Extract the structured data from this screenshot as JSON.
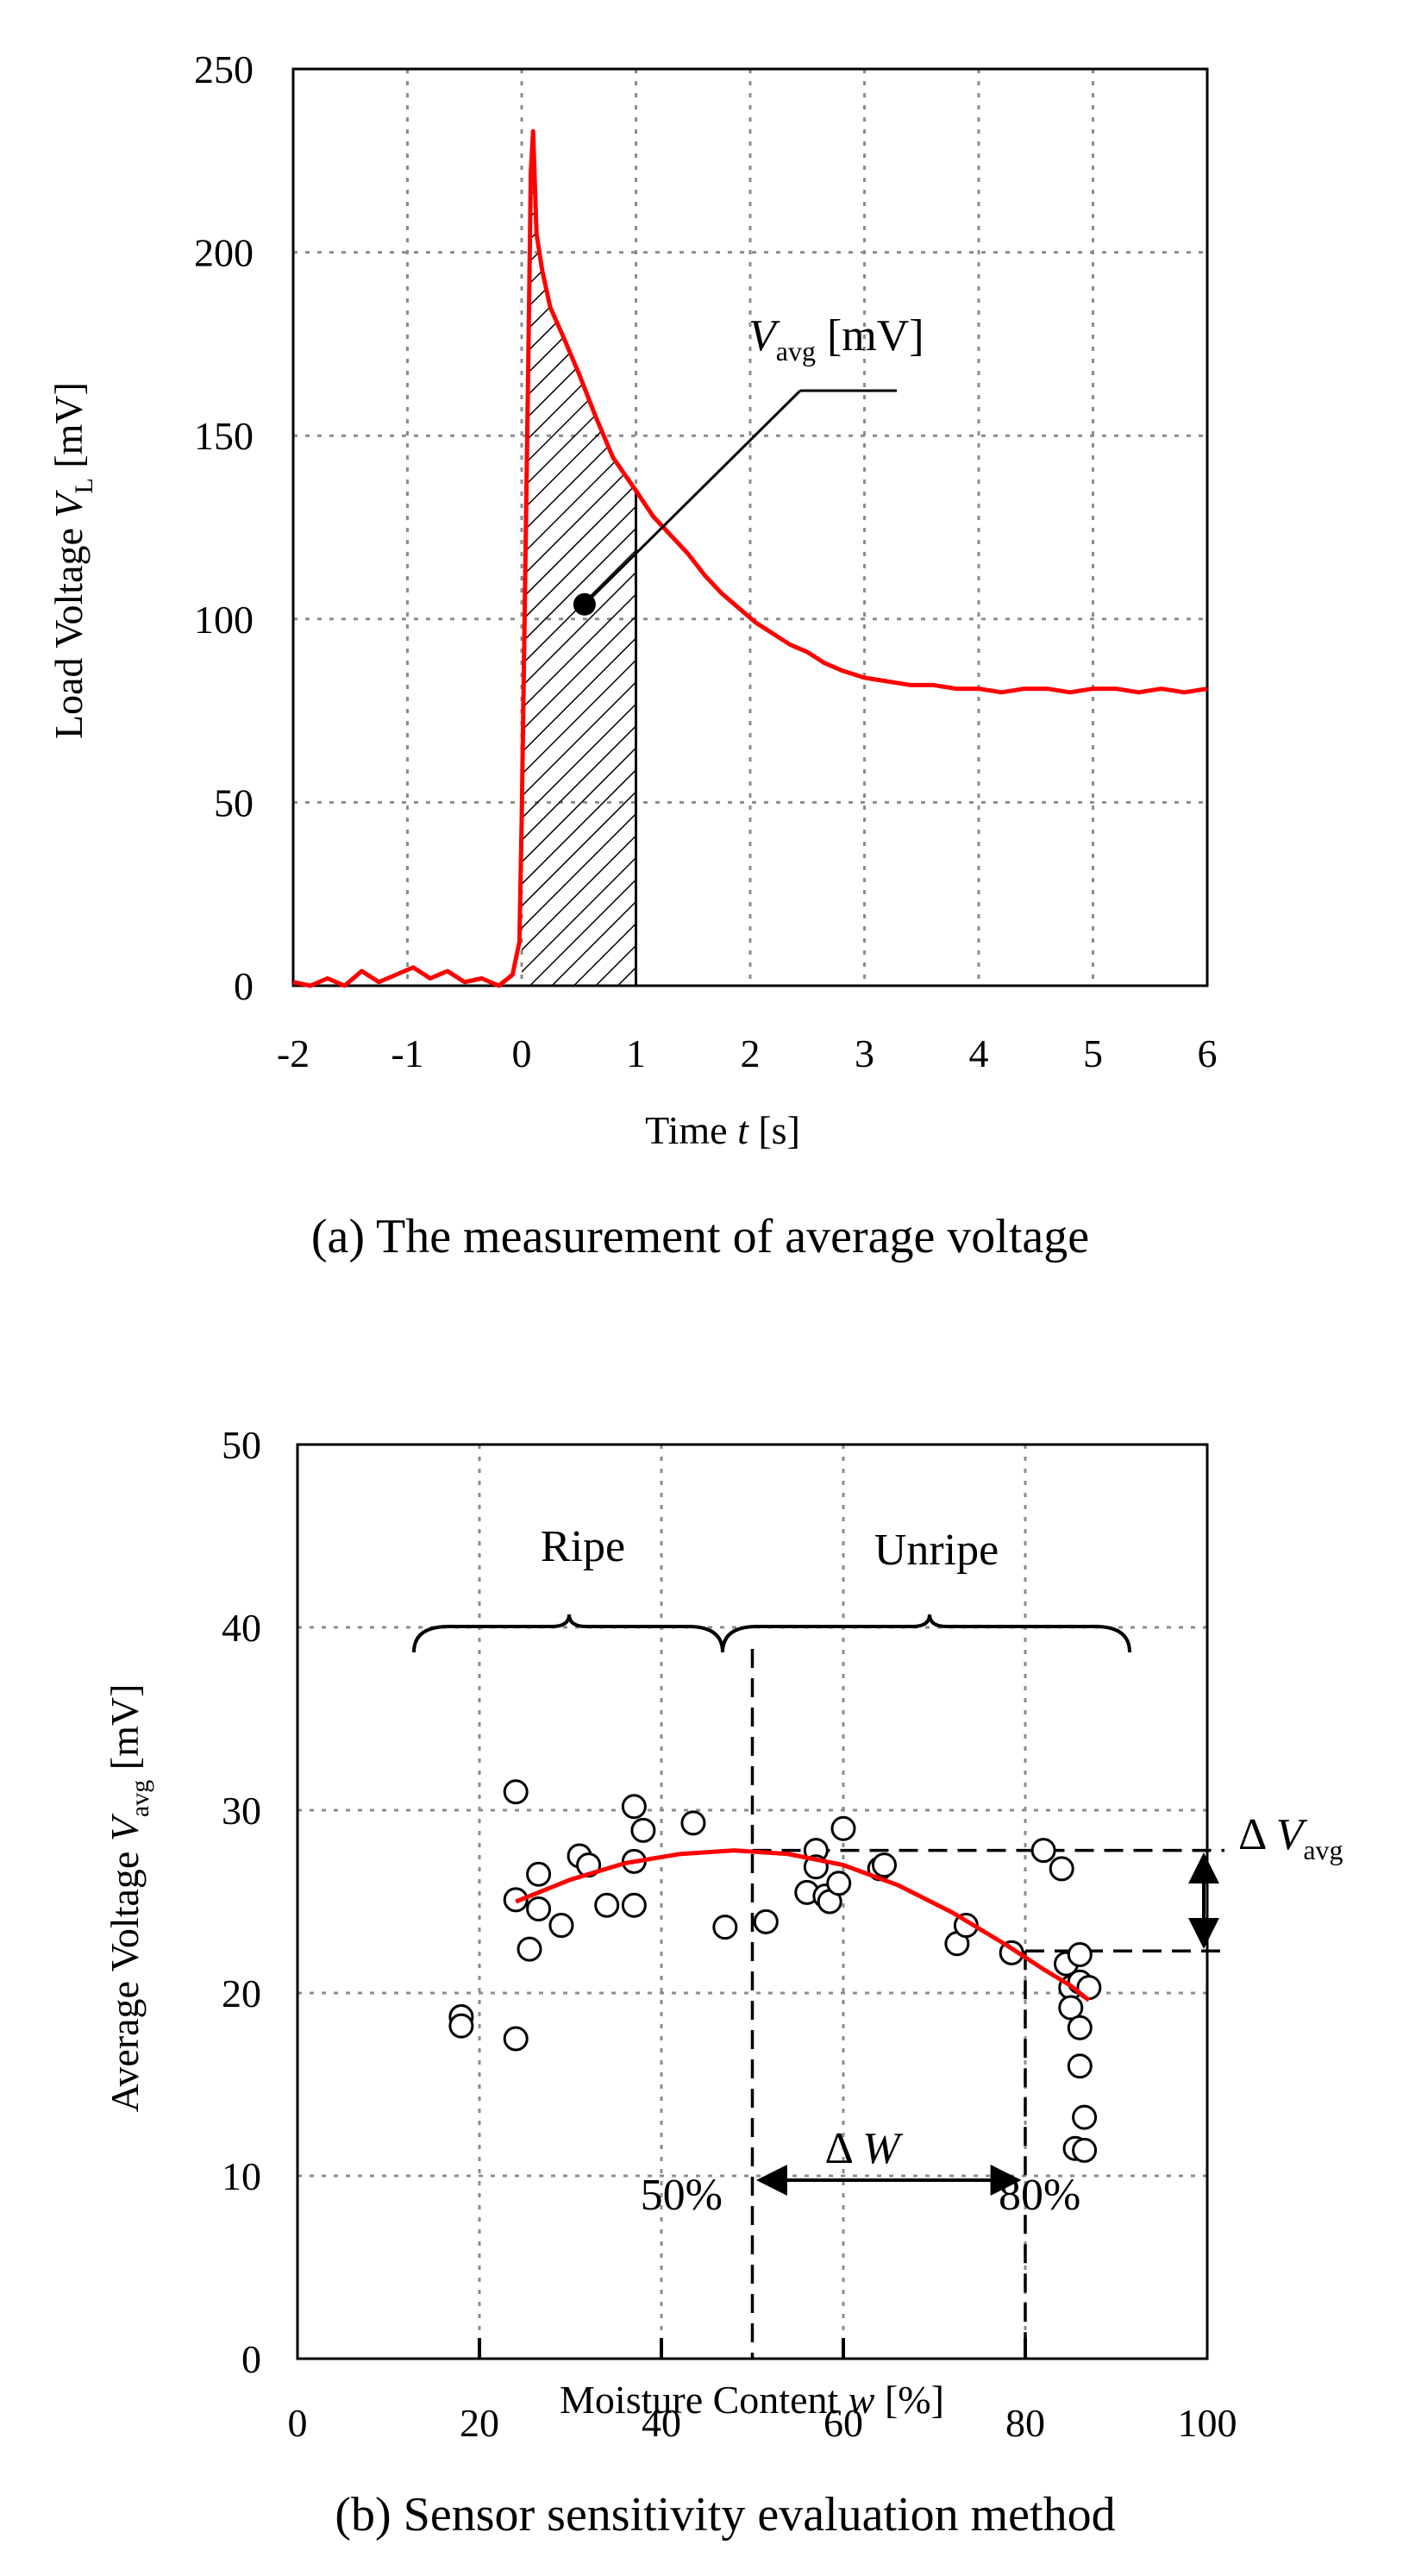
{
  "chart_data": [
    {
      "type": "line",
      "title": "(a) The measurement of average voltage",
      "xlabel": "Time t [s]",
      "ylabel": "Load Voltage V_L [mV]",
      "xlim": [
        -2,
        6
      ],
      "ylim": [
        0,
        250
      ],
      "x_ticks": [
        -2,
        -1,
        0,
        1,
        2,
        3,
        4,
        5,
        6
      ],
      "y_ticks": [
        0,
        50,
        100,
        150,
        200,
        250
      ],
      "grid": true,
      "series": [
        {
          "name": "Load voltage",
          "color": "#ff0000",
          "x": [
            -2,
            -1.85,
            -1.7,
            -1.55,
            -1.4,
            -1.25,
            -1.1,
            -0.95,
            -0.8,
            -0.65,
            -0.5,
            -0.35,
            -0.2,
            -0.08,
            -0.02,
            0.0,
            0.03,
            0.06,
            0.08,
            0.1,
            0.13,
            0.18,
            0.25,
            0.35,
            0.5,
            0.65,
            0.8,
            1.0,
            1.15,
            1.3,
            1.45,
            1.6,
            1.75,
            1.9,
            2.05,
            2.2,
            2.35,
            2.5,
            2.65,
            2.8,
            3.0,
            3.2,
            3.4,
            3.6,
            3.8,
            4.0,
            4.2,
            4.4,
            4.6,
            4.8,
            5.0,
            5.2,
            5.4,
            5.6,
            5.8,
            6.0
          ],
          "y": [
            1,
            0,
            2,
            0,
            4,
            1,
            3,
            5,
            2,
            4,
            1,
            2,
            0,
            3,
            12,
            45,
            110,
            175,
            222,
            233,
            205,
            195,
            185,
            178,
            167,
            155,
            144,
            135,
            128,
            123,
            118,
            112,
            107,
            103,
            99,
            96,
            93,
            91,
            88,
            86,
            84,
            83,
            82,
            82,
            81,
            81,
            80,
            81,
            81,
            80,
            81,
            81,
            80,
            81,
            80,
            81
          ]
        }
      ],
      "shaded_region": {
        "x_from": 0,
        "x_to": 1,
        "label": "hatched area"
      },
      "annotation": {
        "label_main": "V",
        "label_sub": "avg",
        "label_unit": " [mV]",
        "point": [
          0.55,
          104
        ]
      }
    },
    {
      "type": "scatter",
      "title": "(b) Sensor sensitivity evaluation method",
      "xlabel": "Moisture Content w [%]",
      "ylabel": "Average Voltage V_avg [mV]",
      "xlim": [
        0,
        100
      ],
      "ylim": [
        0,
        50
      ],
      "x_ticks": [
        0,
        20,
        40,
        60,
        80,
        100
      ],
      "y_ticks": [
        0,
        10,
        20,
        30,
        40,
        50
      ],
      "grid": true,
      "series": [
        {
          "name": "Measured",
          "marker": "open circle",
          "points": [
            [
              18,
              18.7
            ],
            [
              18,
              18.2
            ],
            [
              24,
              31
            ],
            [
              24,
              25.1
            ],
            [
              24,
              17.5
            ],
            [
              25.5,
              22.4
            ],
            [
              26.5,
              24.6
            ],
            [
              26.5,
              26.5
            ],
            [
              29,
              23.7
            ],
            [
              31,
              27.5
            ],
            [
              32,
              27
            ],
            [
              34,
              24.8
            ],
            [
              37,
              30.2
            ],
            [
              37,
              27.2
            ],
            [
              37,
              24.8
            ],
            [
              38,
              28.9
            ],
            [
              43.5,
              29.3
            ],
            [
              47,
              23.6
            ],
            [
              51.5,
              23.9
            ],
            [
              56,
              25.5
            ],
            [
              57,
              27.8
            ],
            [
              57,
              26.9
            ],
            [
              58,
              25.3
            ],
            [
              58.5,
              25
            ],
            [
              59.5,
              26
            ],
            [
              60,
              29
            ],
            [
              64,
              26.8
            ],
            [
              64.5,
              27
            ],
            [
              72.5,
              22.7
            ],
            [
              73.5,
              23.7
            ],
            [
              78.5,
              22.2
            ],
            [
              82,
              27.8
            ],
            [
              84,
              26.8
            ],
            [
              84.5,
              21.6
            ],
            [
              85,
              20.3
            ],
            [
              85,
              19.2
            ],
            [
              85.5,
              11.5
            ],
            [
              86,
              22.1
            ],
            [
              86,
              20.6
            ],
            [
              86,
              18.1
            ],
            [
              86,
              16
            ],
            [
              86.5,
              13.2
            ],
            [
              86.5,
              11.4
            ],
            [
              87,
              20.3
            ]
          ]
        },
        {
          "name": "Fitted curve",
          "color": "#ff0000",
          "x": [
            24,
            30,
            36,
            42,
            48,
            54,
            60,
            66,
            72,
            78,
            82,
            85,
            87
          ],
          "y": [
            25,
            26.2,
            27.1,
            27.6,
            27.8,
            27.6,
            27.0,
            25.9,
            24.4,
            22.6,
            21.3,
            20.4,
            19.6
          ]
        }
      ],
      "annotations": {
        "ripe_label": "Ripe",
        "unripe_label": "Unripe",
        "pct_50": "50%",
        "pct_80": "80%",
        "delta_w_symbol": "Δ",
        "delta_w_var": "W",
        "delta_v_symbol": "Δ",
        "delta_v_main": "V",
        "delta_v_sub": "avg",
        "v_at_50": 27.8,
        "v_at_80": 22.3
      }
    }
  ],
  "labels": {
    "a_ylabel_main": "Load Voltage ",
    "a_ylabel_var": "V",
    "a_ylabel_sub": "L",
    "a_ylabel_unit": " [mV]",
    "a_xlabel_main": "Time ",
    "a_xlabel_var": "t",
    "a_xlabel_unit": " [s]",
    "b_ylabel_main": "Average Voltage ",
    "b_ylabel_var": "V",
    "b_ylabel_sub": "avg",
    "b_ylabel_unit": " [mV]",
    "b_xlabel_main": "Moisture Content ",
    "b_xlabel_var": "w",
    "b_xlabel_unit": " [%]"
  }
}
